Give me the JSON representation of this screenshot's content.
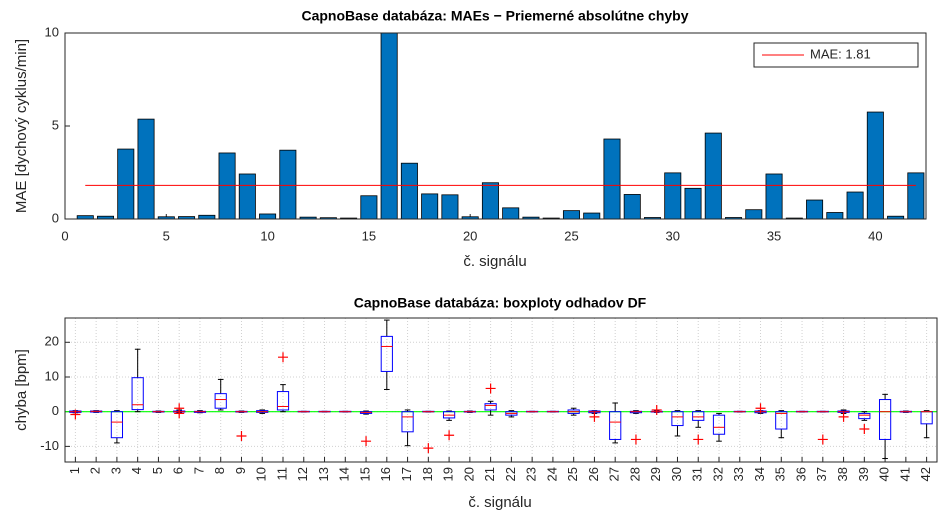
{
  "chart_data": [
    {
      "type": "bar",
      "title": "CapnoBase databáza: MAEs − Priemerné absolútne chyby",
      "x_label": "č. signálu",
      "y_label": "MAE [dychový cyklus/min]",
      "x": [
        1,
        2,
        3,
        4,
        5,
        6,
        7,
        8,
        9,
        10,
        11,
        12,
        13,
        14,
        15,
        16,
        17,
        18,
        19,
        20,
        21,
        22,
        23,
        24,
        25,
        26,
        27,
        28,
        29,
        30,
        31,
        32,
        33,
        34,
        35,
        36,
        37,
        38,
        39,
        40,
        41,
        42
      ],
      "values": [
        0.18,
        0.15,
        3.76,
        5.37,
        0.12,
        0.13,
        0.2,
        3.55,
        2.42,
        0.27,
        3.7,
        0.1,
        0.07,
        0.05,
        1.25,
        10,
        3.0,
        1.35,
        1.3,
        0.12,
        1.95,
        0.6,
        0.1,
        0.05,
        0.45,
        0.32,
        4.3,
        1.32,
        0.08,
        2.48,
        1.65,
        4.62,
        0.08,
        0.5,
        2.42,
        0.05,
        1.02,
        0.35,
        1.45,
        5.75,
        0.15,
        2.48
      ],
      "color": "#0072bd",
      "mean_line": {
        "name": "MAE: 1.81",
        "value": 1.81,
        "color": "#ff0000"
      },
      "legend": "upper right",
      "xlim": [
        0,
        42.5
      ],
      "xticks": [
        0,
        5,
        10,
        15,
        20,
        25,
        30,
        35,
        40
      ],
      "ylim": [
        0,
        10
      ],
      "yticks": [
        0,
        5,
        10
      ],
      "grid": false
    },
    {
      "type": "boxplot",
      "title": "CapnoBase databáza: boxploty odhadov DF",
      "x_label": "č. signálu",
      "y_label": "chyba [bpm]",
      "categories": [
        "1",
        "2",
        "3",
        "4",
        "5",
        "6",
        "7",
        "8",
        "9",
        "10",
        "11",
        "12",
        "13",
        "14",
        "15",
        "16",
        "17",
        "18",
        "19",
        "20",
        "21",
        "22",
        "23",
        "24",
        "25",
        "26",
        "27",
        "28",
        "29",
        "30",
        "31",
        "32",
        "33",
        "34",
        "35",
        "36",
        "37",
        "38",
        "39",
        "40",
        "41",
        "42"
      ],
      "whisker_low": [
        -0.3,
        -0.2,
        -9,
        0,
        -0.2,
        -0.3,
        -0.3,
        0.5,
        -0.2,
        -0.5,
        0,
        -0.1,
        -0.1,
        -0.1,
        -0.7,
        6.4,
        -9.8,
        -0.1,
        -2.5,
        -0.2,
        -1,
        -1.5,
        -0.1,
        -0.1,
        -1,
        -0.5,
        -9,
        -0.5,
        -0.2,
        -7,
        -4.5,
        -8.5,
        -0.1,
        -0.5,
        -7.5,
        -0.1,
        -0.1,
        -0.5,
        -2.5,
        -13.5,
        -0.2,
        -7.5
      ],
      "q1": [
        -0.2,
        -0.1,
        -7.5,
        0.6,
        -0.1,
        -0.1,
        -0.2,
        1,
        -0.1,
        -0.2,
        0.5,
        0,
        0,
        0,
        -0.5,
        11.6,
        -5.8,
        0,
        -1.8,
        -0.1,
        0.5,
        -1,
        0,
        0,
        -0.5,
        -0.3,
        -8,
        -0.3,
        -0.1,
        -4,
        -2.5,
        -6.5,
        0,
        -0.3,
        -5,
        0,
        0,
        -0.2,
        -2,
        -8,
        -0.1,
        -3.5
      ],
      "median": [
        0,
        0.1,
        -3,
        2,
        0,
        0,
        0,
        3.5,
        0,
        0,
        1.5,
        0,
        0,
        0,
        -0.2,
        18.8,
        -1.5,
        0,
        -1,
        0,
        1.8,
        -0.5,
        0,
        0,
        0,
        0,
        -3,
        0,
        0,
        -1.5,
        -1.5,
        -4.5,
        0,
        0,
        -0.5,
        0,
        0,
        0,
        -1,
        0,
        0,
        0
      ],
      "q3": [
        0.2,
        0.2,
        0,
        9.8,
        0.1,
        0.2,
        0.1,
        5.2,
        0.1,
        0.3,
        5.8,
        0.1,
        0.1,
        0.1,
        0,
        21.7,
        0,
        0.1,
        0,
        0.1,
        2.3,
        0,
        0.1,
        0.1,
        0.5,
        0.2,
        0,
        0.1,
        0.1,
        0,
        0,
        -1,
        0.1,
        0.2,
        0,
        0.1,
        0.1,
        0.2,
        -0.5,
        3.5,
        0.1,
        0
      ],
      "whisker_high": [
        0.3,
        0.3,
        0.3,
        18,
        0.2,
        0.5,
        0.3,
        9.3,
        0.2,
        0.5,
        7.8,
        0.1,
        0.1,
        0.1,
        0.2,
        26.4,
        0.5,
        0.1,
        0.2,
        0.2,
        3,
        0.3,
        0.1,
        0.1,
        1,
        0.3,
        2.5,
        0.3,
        0.2,
        0.3,
        0.3,
        -0.5,
        0.1,
        0.3,
        0.3,
        0.1,
        0.1,
        0.5,
        0,
        5,
        0.2,
        0.3
      ],
      "outliers": [
        [
          -0.8
        ],
        [],
        [],
        [],
        [],
        [
          1,
          -0.5
        ],
        [],
        [],
        [
          -7
        ],
        [],
        [
          15.7
        ],
        [],
        [],
        [],
        [
          -8.5
        ],
        [],
        [],
        [
          -10.5
        ],
        [
          -6.8
        ],
        [],
        [
          6.7
        ],
        [],
        [],
        [],
        [],
        [
          -1.5
        ],
        [],
        [
          -8
        ],
        [
          0.5
        ],
        [],
        [
          -8
        ],
        [],
        [],
        [
          1
        ],
        [],
        [],
        [
          -8
        ],
        [
          -1.5
        ],
        [
          -5
        ],
        [],
        [],
        []
      ],
      "box_color": "#0000ff",
      "median_color": "#ff0000",
      "whisker_color": "#000000",
      "outlier_color": "#ff0000",
      "reference_line": {
        "value": 0,
        "color": "#00ff00"
      },
      "ylim": [
        -14.5,
        27
      ],
      "yticks": [
        -10,
        0,
        10,
        20
      ],
      "grid": true
    }
  ]
}
